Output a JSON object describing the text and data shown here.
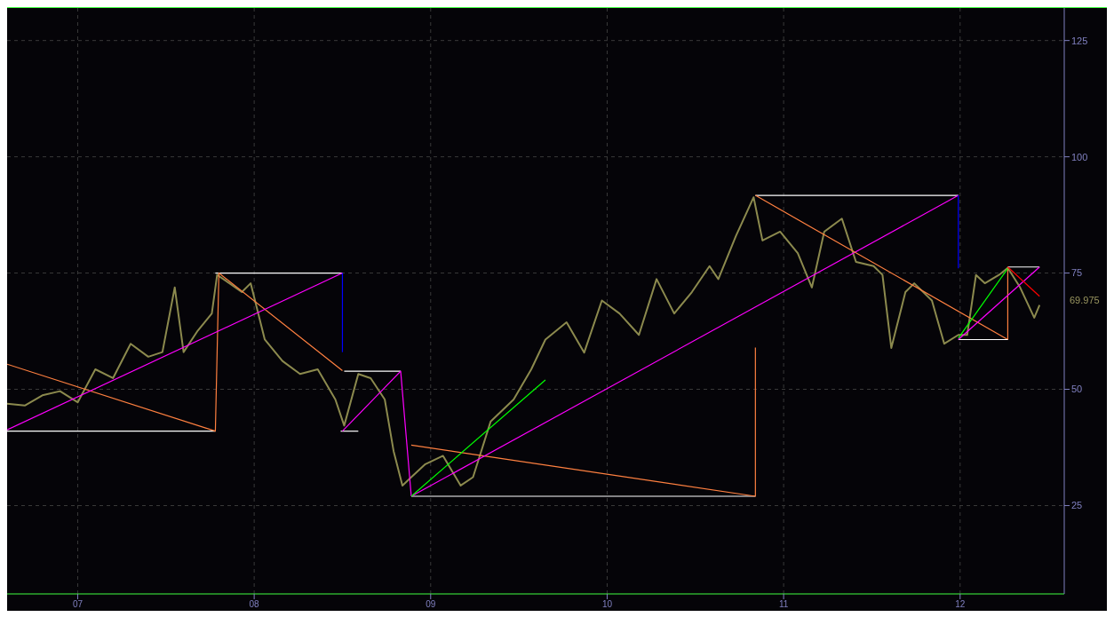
{
  "chart_data": {
    "type": "line",
    "xlim": [
      2006.6,
      2012.59
    ],
    "ylim": [
      6,
      132
    ],
    "xticks": [
      {
        "value": 2007,
        "label": "07"
      },
      {
        "value": 2008,
        "label": "08"
      },
      {
        "value": 2009,
        "label": "09"
      },
      {
        "value": 2010,
        "label": "10"
      },
      {
        "value": 2011,
        "label": "11"
      },
      {
        "value": 2012,
        "label": "12"
      }
    ],
    "yticks": [
      25,
      50,
      75,
      100,
      125
    ],
    "grid": true,
    "legend": false,
    "marker": "none",
    "line_style": "solid",
    "annotations": [
      "69.975"
    ],
    "series": [
      {
        "color": "#8c8a4e",
        "x": [
          2006.6,
          2006.7,
          2006.8,
          2006.9,
          2007.0,
          2007.1,
          2007.2,
          2007.3,
          2007.4,
          2007.48,
          2007.55,
          2007.6,
          2007.68,
          2007.76,
          2007.79,
          2007.86,
          2007.93,
          2007.98,
          2008.06,
          2008.16,
          2008.26,
          2008.36,
          2008.46,
          2008.51,
          2008.59,
          2008.66,
          2008.74,
          2008.79,
          2008.84,
          2008.89,
          2008.97,
          2009.07,
          2009.17,
          2009.24,
          2009.34,
          2009.47,
          2009.57,
          2009.65,
          2009.77,
          2009.87,
          2009.97,
          2010.07,
          2010.18,
          2010.28,
          2010.38,
          2010.48,
          2010.58,
          2010.63,
          2010.73,
          2010.83,
          2010.88,
          2010.98,
          2011.08,
          2011.16,
          2011.23,
          2011.33,
          2011.41,
          2011.51,
          2011.56,
          2011.61,
          2011.69,
          2011.74,
          2011.84,
          2011.91,
          2011.99,
          2012.04,
          2012.09,
          2012.14,
          2012.22,
          2012.27,
          2012.34,
          2012.42,
          2012.45
        ],
        "values": [
          46.9,
          46.5,
          48.7,
          49.6,
          47.2,
          54.3,
          52.4,
          59.8,
          57.0,
          58.0,
          71.9,
          58.0,
          62.6,
          66.3,
          74.6,
          72.8,
          70.9,
          72.8,
          60.7,
          56.1,
          53.3,
          54.3,
          47.8,
          42.2,
          53.3,
          52.4,
          47.8,
          36.7,
          29.3,
          31.1,
          33.9,
          35.7,
          29.3,
          31.1,
          43.1,
          47.8,
          54.3,
          60.7,
          64.4,
          57.9,
          69.1,
          66.3,
          61.7,
          73.7,
          66.3,
          70.9,
          76.5,
          73.7,
          83.0,
          91.3,
          82.0,
          83.9,
          79.3,
          71.9,
          83.9,
          86.7,
          77.4,
          76.5,
          74.6,
          58.9,
          70.9,
          72.8,
          69.1,
          59.8,
          61.7,
          61.7,
          74.6,
          72.8,
          74.6,
          76.1,
          71.9,
          65.4,
          68.1
        ]
      },
      {
        "color": "#ffffff",
        "x": [
          2006.6,
          2007.78
        ],
        "values": [
          41,
          41
        ]
      },
      {
        "color": "#ffffff",
        "x": [
          2007.78,
          2008.5
        ],
        "values": [
          75,
          75
        ]
      },
      {
        "color": "#ff8040",
        "x": [
          2006.6,
          2007.78,
          2007.8,
          2008.5
        ],
        "values": [
          55.4,
          41,
          75,
          54
        ]
      },
      {
        "color": "#ff00ff",
        "x": [
          2006.6,
          2008.5
        ],
        "values": [
          41.3,
          75
        ]
      },
      {
        "color": "#0000ff",
        "x": [
          2008.5,
          2008.5
        ],
        "values": [
          75,
          58
        ]
      },
      {
        "color": "#ffffff",
        "x": [
          2008.51,
          2008.83
        ],
        "values": [
          53.9,
          53.9
        ]
      },
      {
        "color": "#ffffff",
        "x": [
          2008.49,
          2008.59
        ],
        "values": [
          41,
          41
        ]
      },
      {
        "color": "#ff00ff",
        "x": [
          2008.5,
          2008.83,
          2008.89
        ],
        "values": [
          41,
          53.9,
          27
        ]
      },
      {
        "color": "#ffffff",
        "x": [
          2008.89,
          2010.84
        ],
        "values": [
          27,
          27
        ]
      },
      {
        "color": "#ffffff",
        "x": [
          2010.84,
          2011.99
        ],
        "values": [
          91.7,
          91.7
        ]
      },
      {
        "color": "#ff8040",
        "x": [
          2008.89,
          2010.84,
          2010.84
        ],
        "values": [
          38,
          27,
          59
        ]
      },
      {
        "color": "#ff00ff",
        "x": [
          2008.89,
          2011.99
        ],
        "values": [
          27,
          91.7
        ]
      },
      {
        "color": "#0000ff",
        "x": [
          2011.99,
          2011.99
        ],
        "values": [
          91.7,
          76
        ]
      },
      {
        "color": "#ff8040",
        "x": [
          2010.84,
          2012.27,
          2012.27
        ],
        "values": [
          91.7,
          60.7,
          76.3
        ]
      },
      {
        "color": "#00ff00",
        "x": [
          2008.89,
          2009.65
        ],
        "values": [
          27,
          52
        ]
      },
      {
        "color": "#ffffff",
        "x": [
          2011.99,
          2012.27
        ],
        "values": [
          60.7,
          60.7
        ]
      },
      {
        "color": "#ffffff",
        "x": [
          2012.27,
          2012.45
        ],
        "values": [
          76.3,
          76.3
        ]
      },
      {
        "color": "#ff00ff",
        "x": [
          2011.99,
          2012.45
        ],
        "values": [
          60.7,
          76.3
        ]
      },
      {
        "color": "#00ff00",
        "x": [
          2011.99,
          2012.27
        ],
        "values": [
          61,
          76
        ]
      },
      {
        "color": "#ff0000",
        "x": [
          2012.27,
          2012.45
        ],
        "values": [
          76.3,
          70
        ]
      }
    ]
  }
}
